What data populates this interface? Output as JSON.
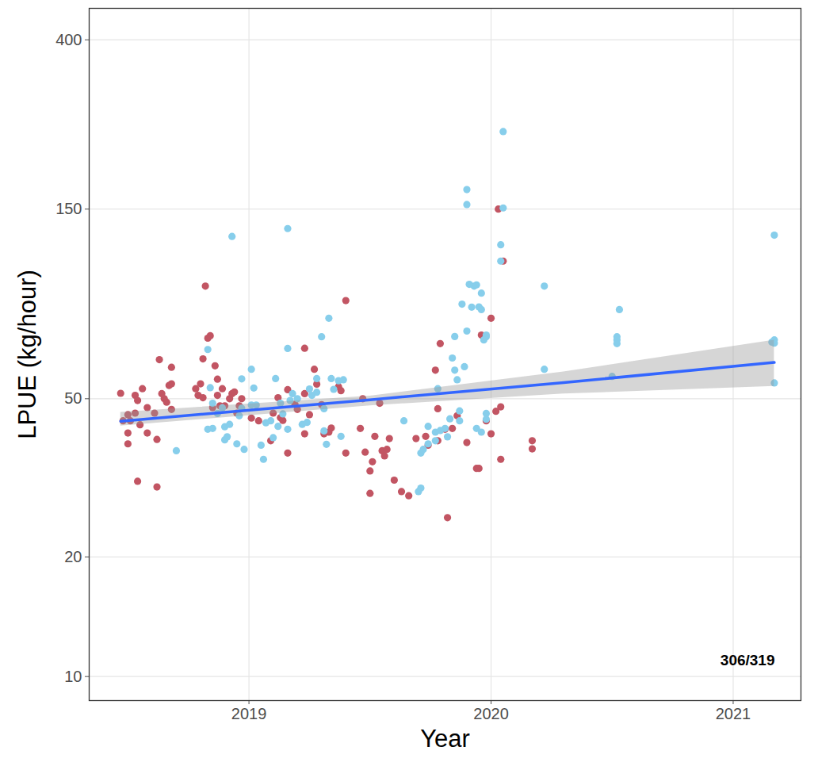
{
  "chart_data": {
    "type": "scatter",
    "x_label": "Year",
    "y_label": "LPUE (kg/hour)",
    "annotation": "306/319",
    "log": "y",
    "grid": true,
    "xlim": [
      2018.34,
      2021.28
    ],
    "xticks": [
      2019,
      2020,
      2021
    ],
    "ylim": [
      8.7,
      480
    ],
    "yticks": [
      10,
      20,
      50,
      150,
      400
    ],
    "series": [
      {
        "type": "scatter",
        "marker": "circle",
        "color": "#C25563",
        "x": [
          2018.47,
          2018.5,
          2018.48,
          2018.51,
          2018.5,
          2018.53,
          2018.54,
          2018.56,
          2018.53,
          2018.55,
          2018.5,
          2018.54,
          2018.58,
          2018.58,
          2018.61,
          2018.62,
          2018.62,
          2018.63,
          2018.64,
          2018.65,
          2018.66,
          2018.67,
          2018.68,
          2018.68,
          2018.68,
          2018.78,
          2018.79,
          2018.8,
          2018.81,
          2018.81,
          2018.82,
          2018.83,
          2018.84,
          2018.85,
          2018.86,
          2018.87,
          2018.87,
          2018.88,
          2018.89,
          2018.9,
          2018.92,
          2018.93,
          2018.94,
          2018.95,
          2018.96,
          2018.97,
          2019.01,
          2019.04,
          2019.09,
          2019.1,
          2019.12,
          2019.13,
          2019.14,
          2019.16,
          2019.16,
          2019.19,
          2019.2,
          2019.23,
          2019.23,
          2019.23,
          2019.25,
          2019.27,
          2019.28,
          2019.3,
          2019.31,
          2019.33,
          2019.34,
          2019.37,
          2019.38,
          2019.4,
          2019.4,
          2019.46,
          2019.47,
          2019.48,
          2019.5,
          2019.51,
          2019.5,
          2019.52,
          2019.54,
          2019.55,
          2019.56,
          2019.58,
          2019.57,
          2019.6,
          2019.63,
          2019.66,
          2019.69,
          2019.73,
          2019.74,
          2019.77,
          2019.78,
          2019.78,
          2019.79,
          2019.81,
          2019.82,
          2019.84,
          2019.86,
          2019.9,
          2019.94,
          2019.95,
          2019.96,
          2019.98,
          2020.0,
          2020.0,
          2020.03,
          2020.05,
          2020.04,
          2020.04,
          2020.02,
          2020.17,
          2020.17
        ],
        "values": [
          51.6,
          45.6,
          44,
          44,
          41,
          51,
          49.5,
          53,
          46,
          43,
          38.5,
          31,
          47.5,
          41,
          46,
          30,
          39.5,
          62.7,
          51.5,
          50,
          49,
          54,
          47,
          60,
          54.5,
          53,
          51,
          54.5,
          50.3,
          63,
          96,
          71,
          72,
          47.5,
          60.5,
          56,
          51,
          48,
          53,
          48,
          50,
          51.5,
          52,
          46,
          48,
          50,
          44.7,
          44,
          39.2,
          46,
          50.3,
          44.8,
          44.1,
          52.7,
          36.5,
          48.4,
          47,
          40.8,
          51.5,
          67,
          45.6,
          59.3,
          54.4,
          48.3,
          40.8,
          41.2,
          42.2,
          53.6,
          52.4,
          36.5,
          88.3,
          42.1,
          50,
          36.7,
          28.9,
          34.7,
          32.9,
          40.2,
          48.7,
          37,
          35.9,
          39.7,
          37.3,
          31.2,
          29.2,
          28.5,
          39.7,
          40.2,
          38.2,
          59,
          47.2,
          39.2,
          68.8,
          41.9,
          25.1,
          42.1,
          45.3,
          38.8,
          33.4,
          33.4,
          72.3,
          44,
          40.8,
          79.7,
          150,
          111,
          47.7,
          35.2,
          46.5,
          39.2,
          37.4
        ]
      },
      {
        "type": "scatter",
        "marker": "circle",
        "color": "#87CEEB",
        "x": [
          2018.7,
          2018.83,
          2018.84,
          2018.85,
          2018.83,
          2018.85,
          2018.87,
          2018.89,
          2018.9,
          2018.9,
          2018.92,
          2018.91,
          2018.93,
          2018.95,
          2018.96,
          2018.97,
          2018.97,
          2018.98,
          2019.02,
          2019.01,
          2019.01,
          2019.03,
          2019.05,
          2019.06,
          2019.07,
          2019.09,
          2019.1,
          2019.11,
          2019.12,
          2019.13,
          2019.14,
          2019.16,
          2019.16,
          2019.16,
          2019.17,
          2019.18,
          2019.2,
          2019.22,
          2019.24,
          2019.25,
          2019.26,
          2019.28,
          2019.28,
          2019.3,
          2019.31,
          2019.31,
          2019.32,
          2019.33,
          2019.34,
          2019.35,
          2019.37,
          2019.38,
          2019.39,
          2019.64,
          2019.71,
          2019.7,
          2019.71,
          2019.72,
          2019.74,
          2019.74,
          2019.77,
          2019.78,
          2019.77,
          2019.79,
          2019.81,
          2019.82,
          2019.83,
          2019.84,
          2019.85,
          2019.85,
          2019.86,
          2019.87,
          2019.87,
          2019.88,
          2019.89,
          2019.9,
          2019.9,
          2019.9,
          2019.91,
          2019.92,
          2019.93,
          2019.94,
          2019.95,
          2019.96,
          2019.96,
          2019.98,
          2019.98,
          2019.97,
          2019.98,
          2019.98,
          2019.96,
          2019.94,
          2020.05,
          2020.05,
          2020.04,
          2020.04,
          2020.22,
          2020.22,
          2020.5,
          2020.52,
          2020.52,
          2020.52,
          2020.53,
          2021.17,
          2021.17,
          2021.17,
          2021.17,
          2021.16
        ],
        "values": [
          37,
          66.5,
          53.3,
          48.7,
          41.9,
          42.1,
          45.9,
          47.4,
          42.5,
          39.4,
          43.1,
          40.1,
          128,
          38.5,
          45.3,
          47.3,
          56.1,
          37.3,
          53.2,
          48.2,
          59.3,
          48.2,
          38.2,
          35.2,
          43.5,
          44,
          39.9,
          56.2,
          42.6,
          48.7,
          45.8,
          66.9,
          134,
          41.9,
          49.5,
          51.5,
          50,
          43.1,
          43.6,
          52.9,
          51,
          51.9,
          56.2,
          71.6,
          47.2,
          41.5,
          38.4,
          79.7,
          56.2,
          52.8,
          55.5,
          40.2,
          55.8,
          44,
          29.8,
          29.2,
          36.5,
          37.3,
          42.6,
          38.5,
          39.2,
          53,
          41.2,
          41.6,
          42.1,
          40.1,
          44.5,
          63.3,
          71.7,
          59,
          55.8,
          46.6,
          44,
          86.5,
          60.2,
          74,
          168,
          154,
          97,
          85,
          96,
          96.7,
          85.1,
          92.2,
          83.8,
          71.6,
          72.3,
          70.3,
          45.9,
          44.4,
          41.2,
          42.1,
          235,
          151,
          122,
          111,
          96,
          59.3,
          56.9,
          70.3,
          71.6,
          68.8,
          83.8,
          54.8,
          69,
          70.3,
          129,
          69.4
        ]
      },
      {
        "type": "line",
        "line_style": "solid",
        "color": "#3366FF",
        "x": [
          2018.47,
          2019.5,
          2020.3,
          2021.17
        ],
        "values": [
          43.9,
          49.7,
          54.9,
          61.7
        ],
        "lower": [
          42.7,
          48.0,
          51.4,
          53.7
        ],
        "upper": [
          46.2,
          50.8,
          58.4,
          70.2
        ]
      }
    ]
  }
}
